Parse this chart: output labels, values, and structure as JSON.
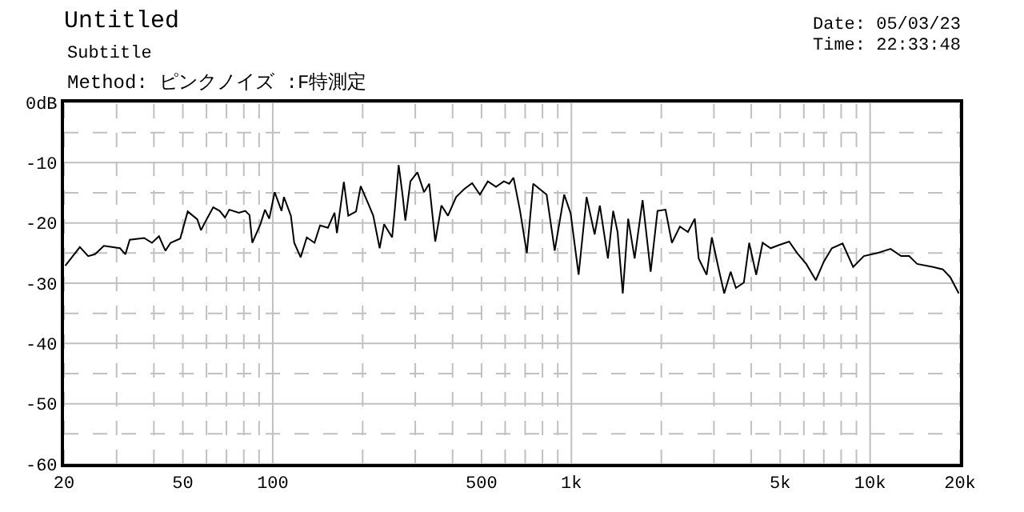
{
  "chart_data": {
    "type": "line",
    "title": "Untitled",
    "subtitle": "Subtitle",
    "annotations": [
      "Method: ピンクノイズ :F特測定",
      "Date: 05/03/23",
      "Time: 22:33:48"
    ],
    "log": "x",
    "grid": true,
    "marker": "none",
    "line_style": "solid",
    "xlim": [
      20,
      20000
    ],
    "ylim": [
      -60,
      0
    ],
    "xticks": [
      20,
      {
        "value": 30,
        "label": null
      },
      {
        "value": 40,
        "label": null
      },
      50,
      {
        "value": 60,
        "label": null
      },
      {
        "value": 70,
        "label": null
      },
      {
        "value": 80,
        "label": null
      },
      {
        "value": 90,
        "label": null
      },
      100,
      {
        "value": 200,
        "label": null
      },
      {
        "value": 300,
        "label": null
      },
      {
        "value": 400,
        "label": null
      },
      500,
      {
        "value": 600,
        "label": null
      },
      {
        "value": 700,
        "label": null
      },
      {
        "value": 800,
        "label": null
      },
      {
        "value": 900,
        "label": null
      },
      {
        "value": 1000,
        "label": "1k"
      },
      {
        "value": 2000,
        "label": null
      },
      {
        "value": 3000,
        "label": null
      },
      {
        "value": 4000,
        "label": null
      },
      {
        "value": 5000,
        "label": "5k"
      },
      {
        "value": 6000,
        "label": null
      },
      {
        "value": 7000,
        "label": null
      },
      {
        "value": 8000,
        "label": null
      },
      {
        "value": 9000,
        "label": null
      },
      {
        "value": 10000,
        "label": "10k"
      },
      {
        "value": 20000,
        "label": "20k"
      }
    ],
    "yticks": [
      {
        "value": 0,
        "label": "0dB"
      },
      {
        "value": -5,
        "label": null
      },
      -10,
      {
        "value": -15,
        "label": null
      },
      -20,
      {
        "value": -25,
        "label": null
      },
      -30,
      {
        "value": -35,
        "label": null
      },
      -40,
      {
        "value": -45,
        "label": null
      },
      -50,
      {
        "value": -55,
        "label": null
      },
      -60
    ],
    "series": [
      {
        "color": "#000000",
        "x": [
          20.2,
          22.6,
          24.1,
          25.4,
          27.2,
          30.8,
          32.1,
          33.2,
          37.1,
          39.4,
          41.6,
          43.7,
          45.5,
          49.0,
          51.9,
          55.9,
          57.5,
          60.2,
          63.2,
          66.4,
          69.2,
          71.5,
          77.0,
          80.9,
          83.6,
          85.4,
          90.8,
          94.2,
          97.3,
          101.5,
          107,
          109,
          115,
          118,
          124,
          130,
          138,
          144,
          153,
          161,
          164,
          173,
          179,
          190,
          197,
          208,
          217,
          228,
          236,
          251,
          256,
          264,
          272,
          278,
          289,
          305,
          321,
          334,
          350,
          367,
          386,
          411,
          437,
          465,
          494,
          525,
          559,
          594,
          619,
          640,
          673,
          709,
          745,
          826,
          879,
          946,
          994,
          1057,
          1124,
          1196,
          1245,
          1325,
          1380,
          1427,
          1486,
          1549,
          1628,
          1731,
          1842,
          1942,
          2065,
          2170,
          2308,
          2455,
          2588,
          2667,
          2836,
          2953,
          3114,
          3248,
          3412,
          3554,
          3779,
          3937,
          4156,
          4367,
          4645,
          4939,
          5358,
          5698,
          6112,
          6580,
          7002,
          7447,
          8090,
          8776,
          9530,
          10560,
          11710,
          12700,
          13510,
          14370,
          16250,
          17510,
          18550,
          19810
        ],
        "values": [
          -27.1,
          -24.0,
          -25.5,
          -25.2,
          -23.8,
          -24.2,
          -25.2,
          -22.8,
          -22.5,
          -23.3,
          -22.2,
          -24.6,
          -23.3,
          -22.6,
          -18.1,
          -19.4,
          -21.2,
          -19.3,
          -17.4,
          -18.0,
          -19.1,
          -17.8,
          -18.3,
          -18.0,
          -18.7,
          -23.3,
          -20.3,
          -17.8,
          -19.3,
          -14.9,
          -18.0,
          -15.7,
          -18.8,
          -23.3,
          -25.7,
          -22.4,
          -23.3,
          -20.4,
          -20.8,
          -18.3,
          -21.7,
          -13.2,
          -18.8,
          -18.1,
          -13.9,
          -16.6,
          -18.8,
          -24.2,
          -20.2,
          -22.4,
          -18.0,
          -10.4,
          -15.3,
          -19.6,
          -13.1,
          -11.6,
          -14.9,
          -13.5,
          -23.1,
          -17.1,
          -18.8,
          -15.7,
          -14.4,
          -13.4,
          -15.3,
          -13.1,
          -14.0,
          -13.1,
          -13.5,
          -12.5,
          -18.0,
          -25.0,
          -13.5,
          -15.3,
          -24.6,
          -15.3,
          -18.4,
          -28.6,
          -15.7,
          -21.9,
          -17.1,
          -25.9,
          -18.0,
          -21.5,
          -31.7,
          -19.3,
          -25.9,
          -16.2,
          -28.1,
          -18.0,
          -17.8,
          -23.3,
          -20.6,
          -21.5,
          -19.3,
          -25.9,
          -28.6,
          -22.4,
          -27.7,
          -31.7,
          -28.1,
          -30.8,
          -29.9,
          -23.3,
          -28.6,
          -23.3,
          -24.2,
          -23.7,
          -23.1,
          -25.0,
          -26.8,
          -29.5,
          -26.4,
          -24.2,
          -23.4,
          -27.3,
          -25.5,
          -25.0,
          -24.3,
          -25.5,
          -25.5,
          -26.8,
          -27.3,
          -27.7,
          -29.0,
          -31.7
        ]
      }
    ]
  }
}
